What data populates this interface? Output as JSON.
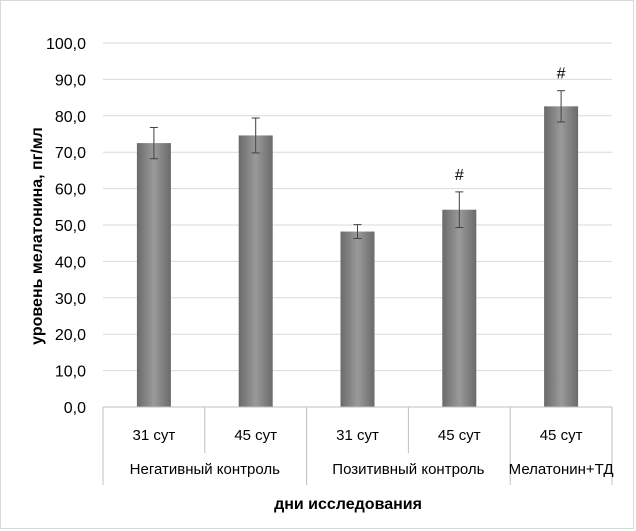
{
  "chart_data": {
    "type": "bar",
    "title": "",
    "xlabel": "дни исследования",
    "ylabel": "уровень мелатонина, пг/мл",
    "ylim": [
      0,
      100
    ],
    "y_ticks": [
      "0,0",
      "10,0",
      "20,0",
      "30,0",
      "40,0",
      "50,0",
      "60,0",
      "70,0",
      "80,0",
      "90,0",
      "100,0"
    ],
    "grid": true,
    "legend": "none",
    "groups": [
      {
        "label": "Негативный контроль",
        "categories": [
          "31 сут",
          "45 сут"
        ]
      },
      {
        "label": "Позитивный  контроль",
        "categories": [
          "31 сут",
          "45 сут"
        ]
      },
      {
        "label": "Мелатонин+ТД",
        "categories": [
          "45 сут"
        ]
      }
    ],
    "categories": [
      "31 сут",
      "45 сут",
      "31 сут",
      "45 сут",
      "45 сут"
    ],
    "values": [
      72.5,
      74.6,
      48.2,
      54.2,
      82.6
    ],
    "errors": [
      4.3,
      4.8,
      1.9,
      4.9,
      4.3
    ],
    "annotations": [
      "",
      "",
      "",
      "#",
      "#"
    ],
    "colors": {
      "bar_edge": "#6a6a6a",
      "bar_center": "#9a9a9a",
      "grid": "#d9d9d9",
      "error": "#404040"
    }
  }
}
